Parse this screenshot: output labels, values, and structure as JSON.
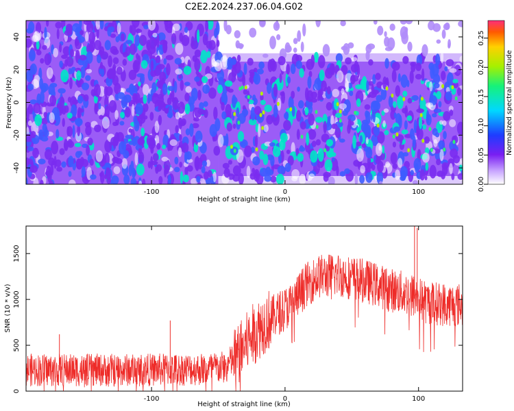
{
  "title": "C2E2.2024.237.06.04.G02",
  "colors": {
    "snr_line": "#ee2b28",
    "spectrogram_base": "#7a2cf0",
    "spectrogram_mid": "#3d5cff",
    "spectrogram_hot": "#00e5c8"
  },
  "chart_data": [
    {
      "type": "heatmap",
      "xlabel": "Height of straight line (km)",
      "ylabel": "Frequency (Hz)",
      "xlim": [
        -194,
        133
      ],
      "ylim": [
        -50,
        50
      ],
      "xticks": [
        {
          "value": -100,
          "label": "-100"
        },
        {
          "value": 0,
          "label": "0"
        },
        {
          "value": 100,
          "label": "100"
        }
      ],
      "yticks": [
        {
          "value": -40,
          "label": "-40"
        },
        {
          "value": -20,
          "label": "-20"
        },
        {
          "value": 0,
          "label": "0"
        },
        {
          "value": 20,
          "label": "20"
        },
        {
          "value": 40,
          "label": "40"
        }
      ],
      "colorbar": {
        "label": "Normalized spectral amplitude",
        "range": [
          0,
          0.28
        ],
        "ticks": [
          {
            "value": 0,
            "label": "0.00"
          },
          {
            "value": 0.05,
            "label": "0.05"
          },
          {
            "value": 0.1,
            "label": "0.10"
          },
          {
            "value": 0.15,
            "label": "0.15"
          },
          {
            "value": 0.2,
            "label": "0.20"
          },
          {
            "value": 0.25,
            "label": "0.25"
          }
        ]
      },
      "regions": [
        {
          "x": [
            -194,
            -50
          ],
          "fill_band_hz": [
            -50,
            50
          ],
          "mean_amplitude": 0.03
        },
        {
          "x": [
            -50,
            133
          ],
          "fill_band_hz": [
            -45,
            25
          ],
          "mean_amplitude": 0.07
        },
        {
          "x": [
            -50,
            133
          ],
          "empty_band_hz": [
            30,
            50
          ],
          "mean_amplitude": 0.0
        }
      ]
    },
    {
      "type": "line",
      "xlabel": "Height of straight line (km)",
      "ylabel": "SNR (10 * v/v)",
      "xlim": [
        -194,
        133
      ],
      "ylim": [
        0,
        1800
      ],
      "xticks": [
        {
          "value": -100,
          "label": "-100"
        },
        {
          "value": 0,
          "label": "0"
        },
        {
          "value": 100,
          "label": "100"
        }
      ],
      "yticks": [
        {
          "value": 0,
          "label": "0"
        },
        {
          "value": 500,
          "label": "500"
        },
        {
          "value": 1000,
          "label": "1000"
        },
        {
          "value": 1500,
          "label": "1500"
        }
      ],
      "trend": {
        "x": [
          -194,
          -120,
          -60,
          -45,
          -35,
          -25,
          -15,
          -5,
          5,
          15,
          25,
          40,
          60,
          80,
          95,
          105,
          115,
          133
        ],
        "y": [
          230,
          230,
          240,
          260,
          400,
          600,
          750,
          850,
          950,
          1150,
          1250,
          1270,
          1200,
          1100,
          1050,
          970,
          950,
          940
        ]
      },
      "noise_amplitude": 180,
      "spikes": [
        {
          "x": -169,
          "y": 620
        },
        {
          "x": -86,
          "y": 770
        },
        {
          "x": 97,
          "y": 1800
        },
        {
          "x": 99,
          "y": 1780
        }
      ]
    }
  ]
}
